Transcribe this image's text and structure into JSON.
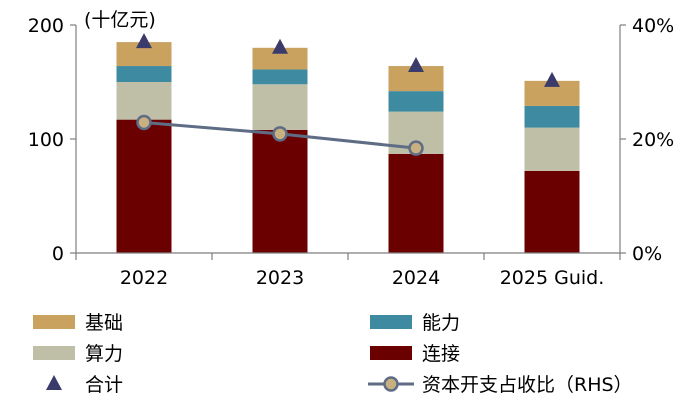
{
  "chart_data": {
    "type": "bar",
    "stacked": true,
    "unit_label": "(十亿元)",
    "categories": [
      "2022",
      "2023",
      "2024",
      "2025 Guid."
    ],
    "series": [
      {
        "name": "连接",
        "values": [
          117,
          108,
          87,
          72
        ],
        "color": "#6b0000"
      },
      {
        "name": "算力",
        "values": [
          33,
          40,
          37,
          38
        ],
        "color": "#bfbfa8"
      },
      {
        "name": "能力",
        "values": [
          14,
          13,
          18,
          19
        ],
        "color": "#3e8aa0"
      },
      {
        "name": "基础",
        "values": [
          21,
          19,
          22,
          22
        ],
        "color": "#c8a25e"
      }
    ],
    "total": {
      "name": "合计",
      "values": [
        185,
        180,
        164,
        151
      ],
      "color": "#3b3b6b",
      "marker": "triangle"
    },
    "capex_ratio": {
      "name": "资本开支占收比（RHS）",
      "values": [
        22.9,
        20.9,
        18.4
      ],
      "axis": "right",
      "line_color": "#5e6c86",
      "marker_color": "#c8b080"
    },
    "ylim_left": [
      0,
      200
    ],
    "yticks_left": [
      "0",
      "100",
      "200"
    ],
    "ylim_right": [
      0,
      40
    ],
    "yticks_right": [
      "0%",
      "20%",
      "40%"
    ],
    "legend_position": "bottom"
  }
}
